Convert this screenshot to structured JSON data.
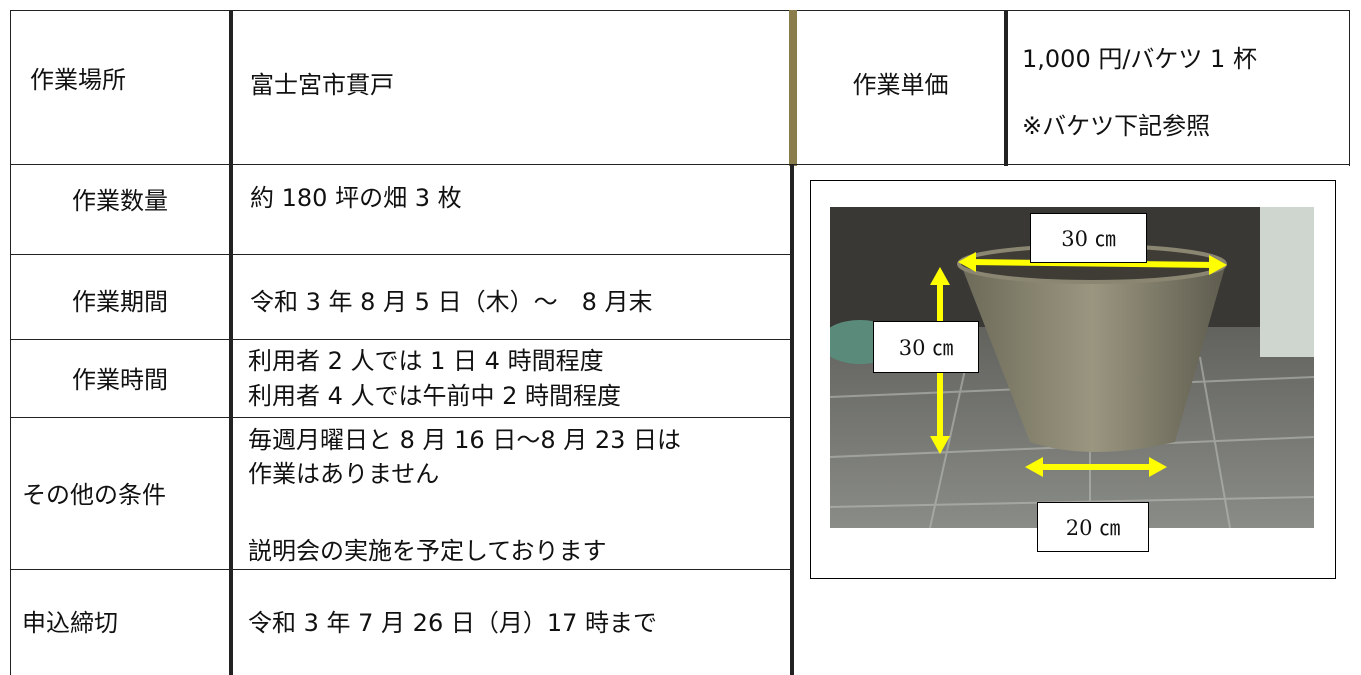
{
  "top": {
    "place_label": "作業場所",
    "place": "富士宮市貫戸",
    "price_label": "作業単価",
    "price": "1,000 円/バケツ 1 杯",
    "price_note": "※バケツ下記参照"
  },
  "rows": [
    {
      "label": "作業数量",
      "lines": [
        "約 180 坪の畑 3 枚"
      ]
    },
    {
      "label": "作業期間",
      "lines": [
        "令和 3 年 8 月 5 日（木）～　8 月末"
      ]
    },
    {
      "label": "作業時間",
      "lines": [
        "利用者 2 人では 1 日 4 時間程度",
        "利用者 4 人では午前中 2 時間程度"
      ]
    },
    {
      "label": "その他の条件",
      "lines": [
        "毎週月曜日と 8 月 16 日～8 月 23 日は",
        "作業はありません",
        "説明会の実施を予定しております"
      ]
    },
    {
      "label": "申込締切",
      "lines": [
        "令和 3 年 7 月 26 日（月）17 時まで"
      ]
    }
  ],
  "photo": {
    "labels": [
      "30 ㎝",
      "30 ㎝",
      "20 ㎝"
    ]
  }
}
